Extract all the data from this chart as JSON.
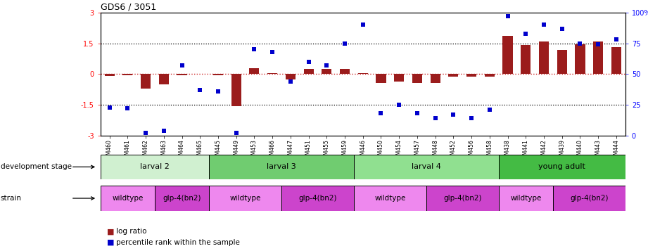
{
  "title": "GDS6 / 3051",
  "samples": [
    "GSM460",
    "GSM461",
    "GSM462",
    "GSM463",
    "GSM464",
    "GSM465",
    "GSM445",
    "GSM449",
    "GSM453",
    "GSM466",
    "GSM447",
    "GSM451",
    "GSM455",
    "GSM459",
    "GSM446",
    "GSM450",
    "GSM454",
    "GSM457",
    "GSM448",
    "GSM452",
    "GSM456",
    "GSM458",
    "GSM438",
    "GSM441",
    "GSM442",
    "GSM439",
    "GSM440",
    "GSM443",
    "GSM444"
  ],
  "log_ratio": [
    -0.08,
    -0.05,
    -0.72,
    -0.5,
    -0.05,
    0.02,
    -0.05,
    -1.58,
    0.28,
    0.05,
    -0.28,
    0.25,
    0.25,
    0.25,
    0.05,
    -0.45,
    -0.35,
    -0.45,
    -0.45,
    -0.12,
    -0.12,
    -0.12,
    1.85,
    1.42,
    1.58,
    1.18,
    1.45,
    1.58,
    1.3
  ],
  "pct_rank": [
    23,
    22,
    2,
    4,
    57,
    37,
    36,
    2,
    70,
    68,
    44,
    60,
    57,
    75,
    90,
    18,
    25,
    18,
    14,
    17,
    14,
    21,
    97,
    83,
    90,
    87,
    75,
    74,
    78
  ],
  "bar_color": "#9b1c1c",
  "dot_color": "#0000cc",
  "zero_line_color": "#cc2222",
  "development_stages": [
    {
      "label": "larval 2",
      "start": 0,
      "end": 6,
      "color": "#d0f0d0"
    },
    {
      "label": "larval 3",
      "start": 6,
      "end": 14,
      "color": "#70cc70"
    },
    {
      "label": "larval 4",
      "start": 14,
      "end": 22,
      "color": "#90e090"
    },
    {
      "label": "young adult",
      "start": 22,
      "end": 29,
      "color": "#44bb44"
    }
  ],
  "strains": [
    {
      "label": "wildtype",
      "start": 0,
      "end": 3,
      "color": "#ee88ee"
    },
    {
      "label": "glp-4(bn2)",
      "start": 3,
      "end": 6,
      "color": "#cc44cc"
    },
    {
      "label": "wildtype",
      "start": 6,
      "end": 10,
      "color": "#ee88ee"
    },
    {
      "label": "glp-4(bn2)",
      "start": 10,
      "end": 14,
      "color": "#cc44cc"
    },
    {
      "label": "wildtype",
      "start": 14,
      "end": 18,
      "color": "#ee88ee"
    },
    {
      "label": "glp-4(bn2)",
      "start": 18,
      "end": 22,
      "color": "#cc44cc"
    },
    {
      "label": "wildtype",
      "start": 22,
      "end": 25,
      "color": "#ee88ee"
    },
    {
      "label": "glp-4(bn2)",
      "start": 25,
      "end": 29,
      "color": "#cc44cc"
    }
  ],
  "dev_stage_label": "development stage",
  "strain_label": "strain",
  "legend_bar": "log ratio",
  "legend_dot": "percentile rank within the sample"
}
